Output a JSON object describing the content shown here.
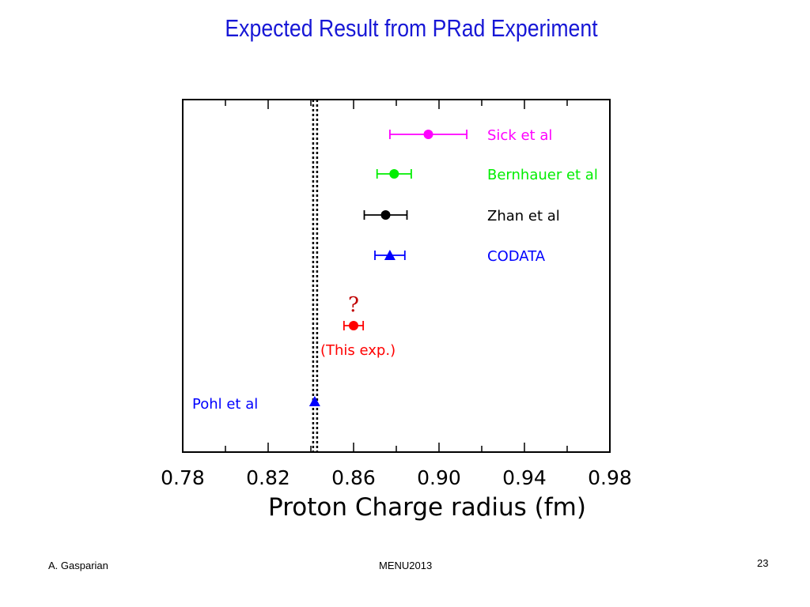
{
  "slide": {
    "title": "Expected Result from PRad Experiment",
    "footer_left": "A. Gasparian",
    "footer_center": "MENU2013",
    "page_number": "23"
  },
  "chart_data": {
    "type": "scatter",
    "xlabel": "Proton Charge radius (fm)",
    "xlim": [
      0.78,
      0.98
    ],
    "x_ticks": [
      "0.78",
      "0.82",
      "0.86",
      "0.90",
      "0.94",
      "0.98"
    ],
    "x_tick_values": [
      0.78,
      0.82,
      0.86,
      0.9,
      0.94,
      0.98
    ],
    "grid": false,
    "reference_line": {
      "x": 0.842,
      "style": "dotted"
    },
    "series": [
      {
        "name": "Sick et al",
        "x": 0.895,
        "err": 0.018,
        "marker": "circle",
        "color": "#ff00ff",
        "label_side": "right"
      },
      {
        "name": "Bernhauer et al",
        "x": 0.879,
        "err": 0.008,
        "marker": "circle",
        "color": "#00ee00",
        "label_side": "right"
      },
      {
        "name": "Zhan et al",
        "x": 0.875,
        "err": 0.01,
        "marker": "circle",
        "color": "#000000",
        "label_side": "right"
      },
      {
        "name": "CODATA",
        "x": 0.877,
        "err": 0.007,
        "marker": "triangle",
        "color": "#0000ff",
        "label_side": "right"
      },
      {
        "name": "(This exp.)",
        "x": 0.86,
        "err": 0.0045,
        "marker": "circle",
        "color": "#ff0000",
        "label_side": "below",
        "annotation": "?"
      },
      {
        "name": "Pohl et al",
        "x": 0.8418,
        "err": 0.0007,
        "marker": "triangle",
        "color": "#0000ff",
        "label_side": "left"
      }
    ]
  }
}
